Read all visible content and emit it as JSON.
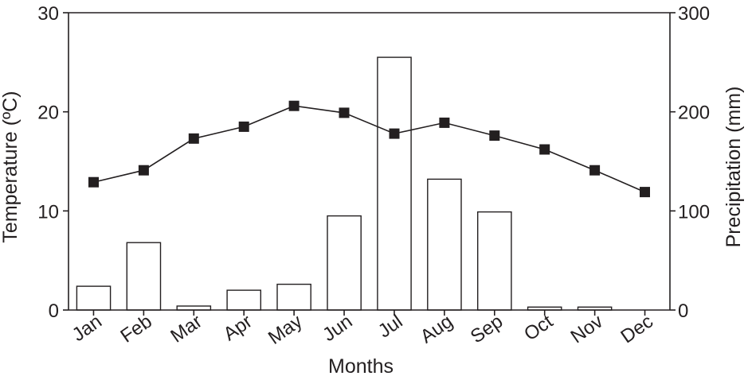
{
  "chart_data": {
    "type": "bar+line",
    "categories": [
      "Jan",
      "Feb",
      "Mar",
      "Apr",
      "May",
      "Jun",
      "Jul",
      "Aug",
      "Sep",
      "Oct",
      "Nov",
      "Dec"
    ],
    "series": [
      {
        "type": "bar",
        "axis": "right",
        "values": [
          24,
          68,
          4,
          20,
          26,
          95,
          255,
          132,
          99,
          3,
          3,
          0
        ]
      },
      {
        "type": "line",
        "axis": "left",
        "marker": "square",
        "values": [
          12.9,
          14.1,
          17.3,
          18.5,
          20.6,
          19.9,
          17.8,
          18.9,
          17.6,
          16.2,
          14.1,
          11.9
        ]
      }
    ],
    "xlabel": "Months",
    "ylabel_left": "Temperature (ºC)",
    "ylabel_right": "Precipitation (mm)",
    "ylim_left": [
      0,
      30
    ],
    "ylim_right": [
      0,
      300
    ],
    "yticks_left": [
      "0",
      "10",
      "20",
      "30"
    ],
    "yticks_right": [
      "0",
      "100",
      "200",
      "300"
    ],
    "grid": false,
    "colors": {
      "axis": "#231f20",
      "bar_fill": "#ffffff",
      "line": "#231f20",
      "marker": "#231f20"
    }
  }
}
